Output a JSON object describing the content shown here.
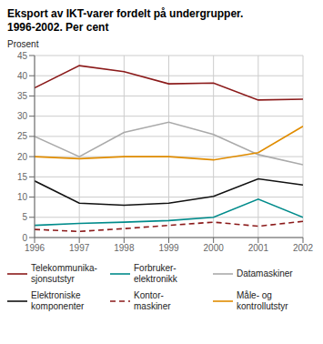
{
  "chart_data": {
    "type": "line",
    "title": "Eksport av IKT-varer fordelt på undergrupper.",
    "subtitle": "1996-2002. Per cent",
    "y_label": "Prosent",
    "x": [
      1996,
      1997,
      1998,
      1999,
      2000,
      2001,
      2002
    ],
    "xlim": [
      1996,
      2002
    ],
    "xticks": [
      1996,
      1997,
      1998,
      1999,
      2000,
      2001,
      2002
    ],
    "ylim": [
      0,
      45
    ],
    "yticks": [
      0,
      5,
      10,
      15,
      20,
      25,
      30,
      35,
      40,
      45
    ],
    "grid": true,
    "series": [
      {
        "name": "Telekommunika-\nsjonsutstyr",
        "color": "#8b1a1a",
        "line_style": "solid",
        "values": [
          37.0,
          42.5,
          41.0,
          38.0,
          38.2,
          34.0,
          34.2
        ]
      },
      {
        "name": "Forbruker-\nelektronikk",
        "color": "#008b8b",
        "line_style": "solid",
        "values": [
          3.0,
          3.5,
          3.8,
          4.2,
          5.0,
          9.5,
          5.0
        ]
      },
      {
        "name": "Datamaskiner",
        "color": "#aaaaaa",
        "line_style": "solid",
        "values": [
          25.0,
          20.0,
          26.0,
          28.5,
          25.5,
          20.5,
          18.0
        ]
      },
      {
        "name": "Elektroniske\nkomponenter",
        "color": "#111111",
        "line_style": "solid",
        "values": [
          14.0,
          8.5,
          8.0,
          8.5,
          10.2,
          14.5,
          13.0
        ]
      },
      {
        "name": "Kontor-\nmaskiner",
        "color": "#8b1a1a",
        "line_style": "dashed",
        "values": [
          2.0,
          1.5,
          2.2,
          3.0,
          3.8,
          2.8,
          4.0
        ]
      },
      {
        "name": "Måle- og\nkontrollutstyr",
        "color": "#e08c00",
        "line_style": "solid",
        "values": [
          20.0,
          19.5,
          20.0,
          20.0,
          19.2,
          21.0,
          27.5
        ]
      }
    ]
  }
}
